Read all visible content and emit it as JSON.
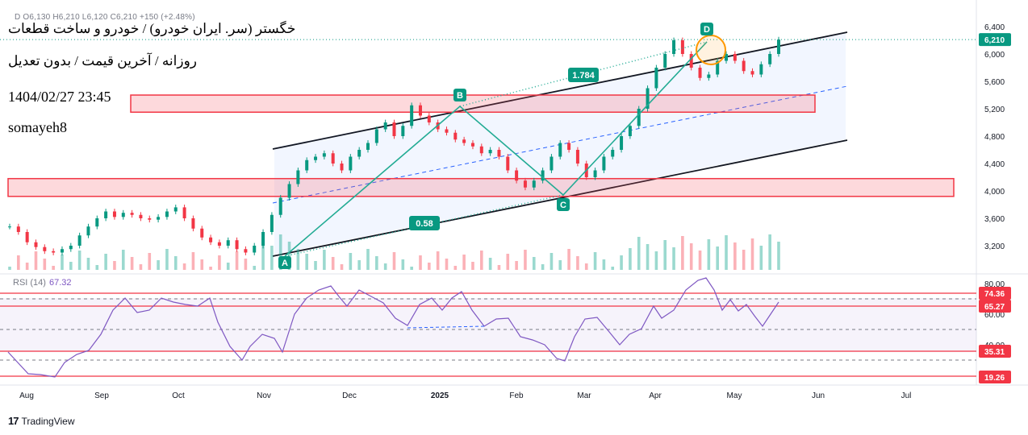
{
  "overlay": {
    "ohlc_line": "D  O6,130  H6,210  L6,120  C6,210  +150 (+2.48%)",
    "title_line1": "خگستر (سر. ایران خودرو) / خودرو و ساخت قطعات",
    "title_line2": "روزانه / آخرین قیمت / بدون تعدیل",
    "datetime": "1404/02/27 23:45",
    "author": "somayeh8"
  },
  "price_axis": {
    "ticks": [
      "6,400",
      "6,000",
      "5,600",
      "5,200",
      "4,800",
      "4,400",
      "4,000",
      "3,600",
      "3,200"
    ],
    "last_price": "6,210",
    "colors": {
      "last_price_bg": "#089981"
    }
  },
  "time_axis": {
    "labels": [
      "Aug",
      "Sep",
      "Oct",
      "Nov",
      "Dec",
      "2025",
      "Feb",
      "Mar",
      "Apr",
      "May",
      "Jun",
      "Jul"
    ]
  },
  "pattern": {
    "points": [
      "A",
      "B",
      "C",
      "D"
    ],
    "ratio_ab_cd": "1.784",
    "ratio_bc": "0.58"
  },
  "rsi": {
    "label": "RSI (14)",
    "value": "67.32",
    "axis_ticks": [
      "80.00",
      "60.00",
      "40.00"
    ],
    "badges": [
      "74.36",
      "65.27",
      "35.31",
      "19.26"
    ],
    "colors": {
      "line": "#7e57c2",
      "badge": "#f23645"
    }
  },
  "branding": {
    "name": "TradingView"
  },
  "chart_data": {
    "type": "candlestick",
    "price_range": [
      3000,
      6450
    ],
    "channel": {
      "upper_line": "from Nov to Jun",
      "lower_line": "from Nov to Jun"
    },
    "zones": [
      {
        "low": 5150,
        "high": 5400
      },
      {
        "low": 3920,
        "high": 4180
      }
    ],
    "series": [
      {
        "name": "close",
        "values": [
          3480,
          3400,
          3250,
          3180,
          3120,
          3100,
          3150,
          3200,
          3350,
          3480,
          3600,
          3700,
          3620,
          3680,
          3650,
          3600,
          3580,
          3620,
          3700,
          3760,
          3600,
          3450,
          3320,
          3250,
          3200,
          3280,
          3150,
          3100,
          3200,
          3400,
          3650,
          3900,
          4100,
          4300,
          4450,
          4500,
          4550,
          4400,
          4300,
          4500,
          4600,
          4700,
          4900,
          5000,
          4800,
          4950,
          5250,
          5100,
          5000,
          4900,
          4850,
          4750,
          4700,
          4650,
          4550,
          4600,
          4500,
          4300,
          4150,
          4050,
          4150,
          4300,
          4500,
          4700,
          4600,
          4400,
          4200,
          4300,
          4500,
          4600,
          4800,
          4950,
          5200,
          5500,
          5800,
          6000,
          6200,
          6000,
          5800,
          5650,
          5700,
          5900,
          6000,
          5900,
          5750,
          5700,
          5850,
          6000,
          6210
        ]
      }
    ]
  }
}
